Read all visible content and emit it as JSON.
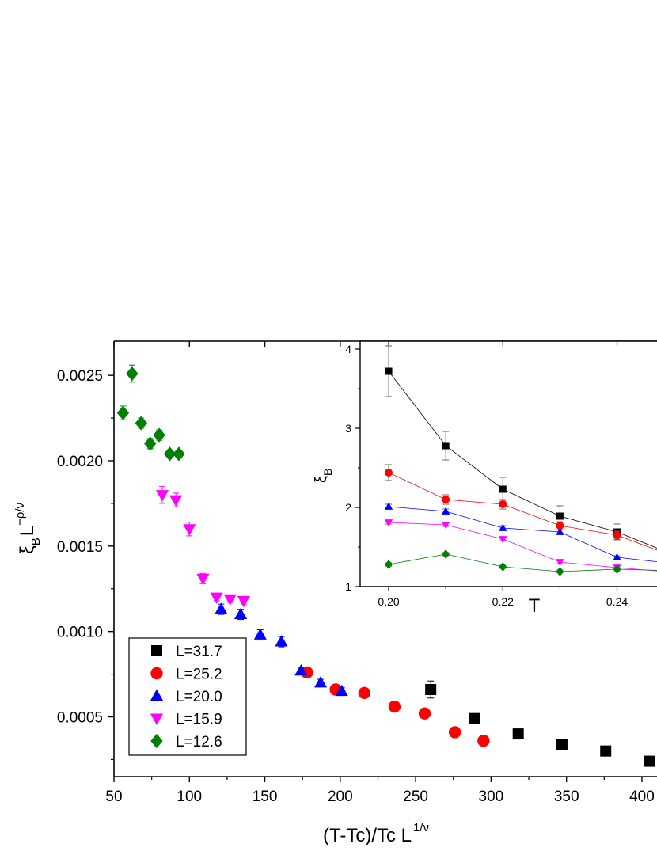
{
  "chart_data": [
    {
      "type": "scatter",
      "xlabel": "(T-Tc)/Tc L",
      "xlabel_sup": "1/ν",
      "ylabel": "ξ",
      "ylabel_sub": "B",
      "ylabel_L": "L",
      "ylabel_sup": "−ρ/ν",
      "xlim": [
        50,
        410
      ],
      "ylim": [
        0.00015,
        0.0027
      ],
      "xticks": [
        50,
        100,
        150,
        200,
        250,
        300,
        350,
        400
      ],
      "yticks": [
        0.0005,
        0.001,
        0.0015,
        0.002,
        0.0025
      ],
      "xtick_labels": [
        "50",
        "100",
        "150",
        "200",
        "250",
        "300",
        "350",
        "400"
      ],
      "ytick_labels": [
        "0.0005",
        "0.0010",
        "0.0015",
        "0.0020",
        "0.0025"
      ],
      "legend_position": "bottom-left",
      "grid": false,
      "series": [
        {
          "name": "L=31.7",
          "marker": "square",
          "color": "#000000",
          "x": [
            260,
            289,
            318,
            347,
            376,
            405
          ],
          "y": [
            0.00066,
            0.00049,
            0.0004,
            0.00034,
            0.0003,
            0.00024
          ],
          "err": [
            5e-05,
            2e-05,
            1e-05,
            1e-05,
            1e-05,
            1e-05
          ]
        },
        {
          "name": "L=25.2",
          "marker": "circle",
          "color": "#ff0000",
          "x": [
            178,
            197,
            216,
            236,
            256,
            276,
            295
          ],
          "y": [
            0.00076,
            0.00066,
            0.00064,
            0.00056,
            0.00052,
            0.00041,
            0.00036
          ],
          "err": [
            2e-05,
            1e-05,
            1e-05,
            1e-05,
            1e-05,
            1e-05,
            1e-05
          ]
        },
        {
          "name": "L=20.0",
          "marker": "triangle-up",
          "color": "#0000ff",
          "x": [
            121,
            134,
            147,
            161,
            174,
            187,
            201
          ],
          "y": [
            0.00113,
            0.0011,
            0.00098,
            0.00094,
            0.00077,
            0.0007,
            0.00065
          ],
          "err": [
            3e-05,
            3e-05,
            3e-05,
            3e-05,
            2e-05,
            2e-05,
            2e-05
          ]
        },
        {
          "name": "L=15.9",
          "marker": "triangle-down",
          "color": "#ff00ff",
          "x": [
            82,
            91,
            100,
            109,
            118,
            127,
            136
          ],
          "y": [
            0.0018,
            0.00177,
            0.0016,
            0.00131,
            0.0012,
            0.00119,
            0.00118
          ],
          "err": [
            5e-05,
            4e-05,
            4e-05,
            3e-05,
            2e-05,
            2e-05,
            2e-05
          ]
        },
        {
          "name": "L=12.6",
          "marker": "diamond",
          "color": "#008000",
          "x": [
            56,
            62,
            68,
            74,
            80,
            87,
            93
          ],
          "y": [
            0.00228,
            0.00251,
            0.00222,
            0.0021,
            0.00215,
            0.00204,
            0.00204
          ],
          "err": [
            4e-05,
            5e-05,
            3e-05,
            3e-05,
            3e-05,
            2e-05,
            2e-05
          ]
        }
      ]
    },
    {
      "type": "line",
      "inset": true,
      "xlabel": "T",
      "ylabel": "ξ",
      "ylabel_sub": "B",
      "xlim": [
        0.195,
        0.247
      ],
      "ylim": [
        1.0,
        4.1
      ],
      "xticks": [
        0.2,
        0.22,
        0.24
      ],
      "yticks": [
        1,
        2,
        3,
        4
      ],
      "xtick_labels": [
        "0.20",
        "0.22",
        "0.24"
      ],
      "ytick_labels": [
        "1",
        "2",
        "3",
        "4"
      ],
      "grid": false,
      "series": [
        {
          "name": "L=31.7",
          "marker": "square",
          "color": "#000000",
          "x": [
            0.2,
            0.21,
            0.22,
            0.23,
            0.24,
            0.25
          ],
          "y": [
            3.72,
            2.78,
            2.23,
            1.89,
            1.69,
            1.4
          ],
          "err": [
            0.32,
            0.18,
            0.15,
            0.13,
            0.1,
            0.08
          ]
        },
        {
          "name": "L=25.2",
          "marker": "circle",
          "color": "#ff0000",
          "x": [
            0.2,
            0.21,
            0.22,
            0.23,
            0.24,
            0.25
          ],
          "y": [
            2.44,
            2.1,
            2.04,
            1.77,
            1.65,
            1.38
          ],
          "err": [
            0.1,
            0.06,
            0.06,
            0.05,
            0.05,
            0.04
          ]
        },
        {
          "name": "L=20.0",
          "marker": "triangle-up",
          "color": "#0000ff",
          "x": [
            0.2,
            0.21,
            0.22,
            0.23,
            0.24,
            0.25
          ],
          "y": [
            2.01,
            1.95,
            1.74,
            1.69,
            1.37,
            1.29
          ],
          "err": [
            0.03,
            0.03,
            0.03,
            0.03,
            0.02,
            0.02
          ]
        },
        {
          "name": "L=15.9",
          "marker": "triangle-down",
          "color": "#ff00ff",
          "x": [
            0.2,
            0.21,
            0.22,
            0.23,
            0.24,
            0.25
          ],
          "y": [
            1.81,
            1.78,
            1.6,
            1.31,
            1.24,
            1.18
          ],
          "err": [
            0.02,
            0.02,
            0.02,
            0.02,
            0.02,
            0.02
          ]
        },
        {
          "name": "L=12.6",
          "marker": "diamond",
          "color": "#008000",
          "x": [
            0.2,
            0.21,
            0.22,
            0.23,
            0.24,
            0.25
          ],
          "y": [
            1.28,
            1.41,
            1.25,
            1.19,
            1.22,
            1.2
          ],
          "err": [
            0.02,
            0.02,
            0.02,
            0.02,
            0.02,
            0.02
          ]
        }
      ]
    }
  ]
}
